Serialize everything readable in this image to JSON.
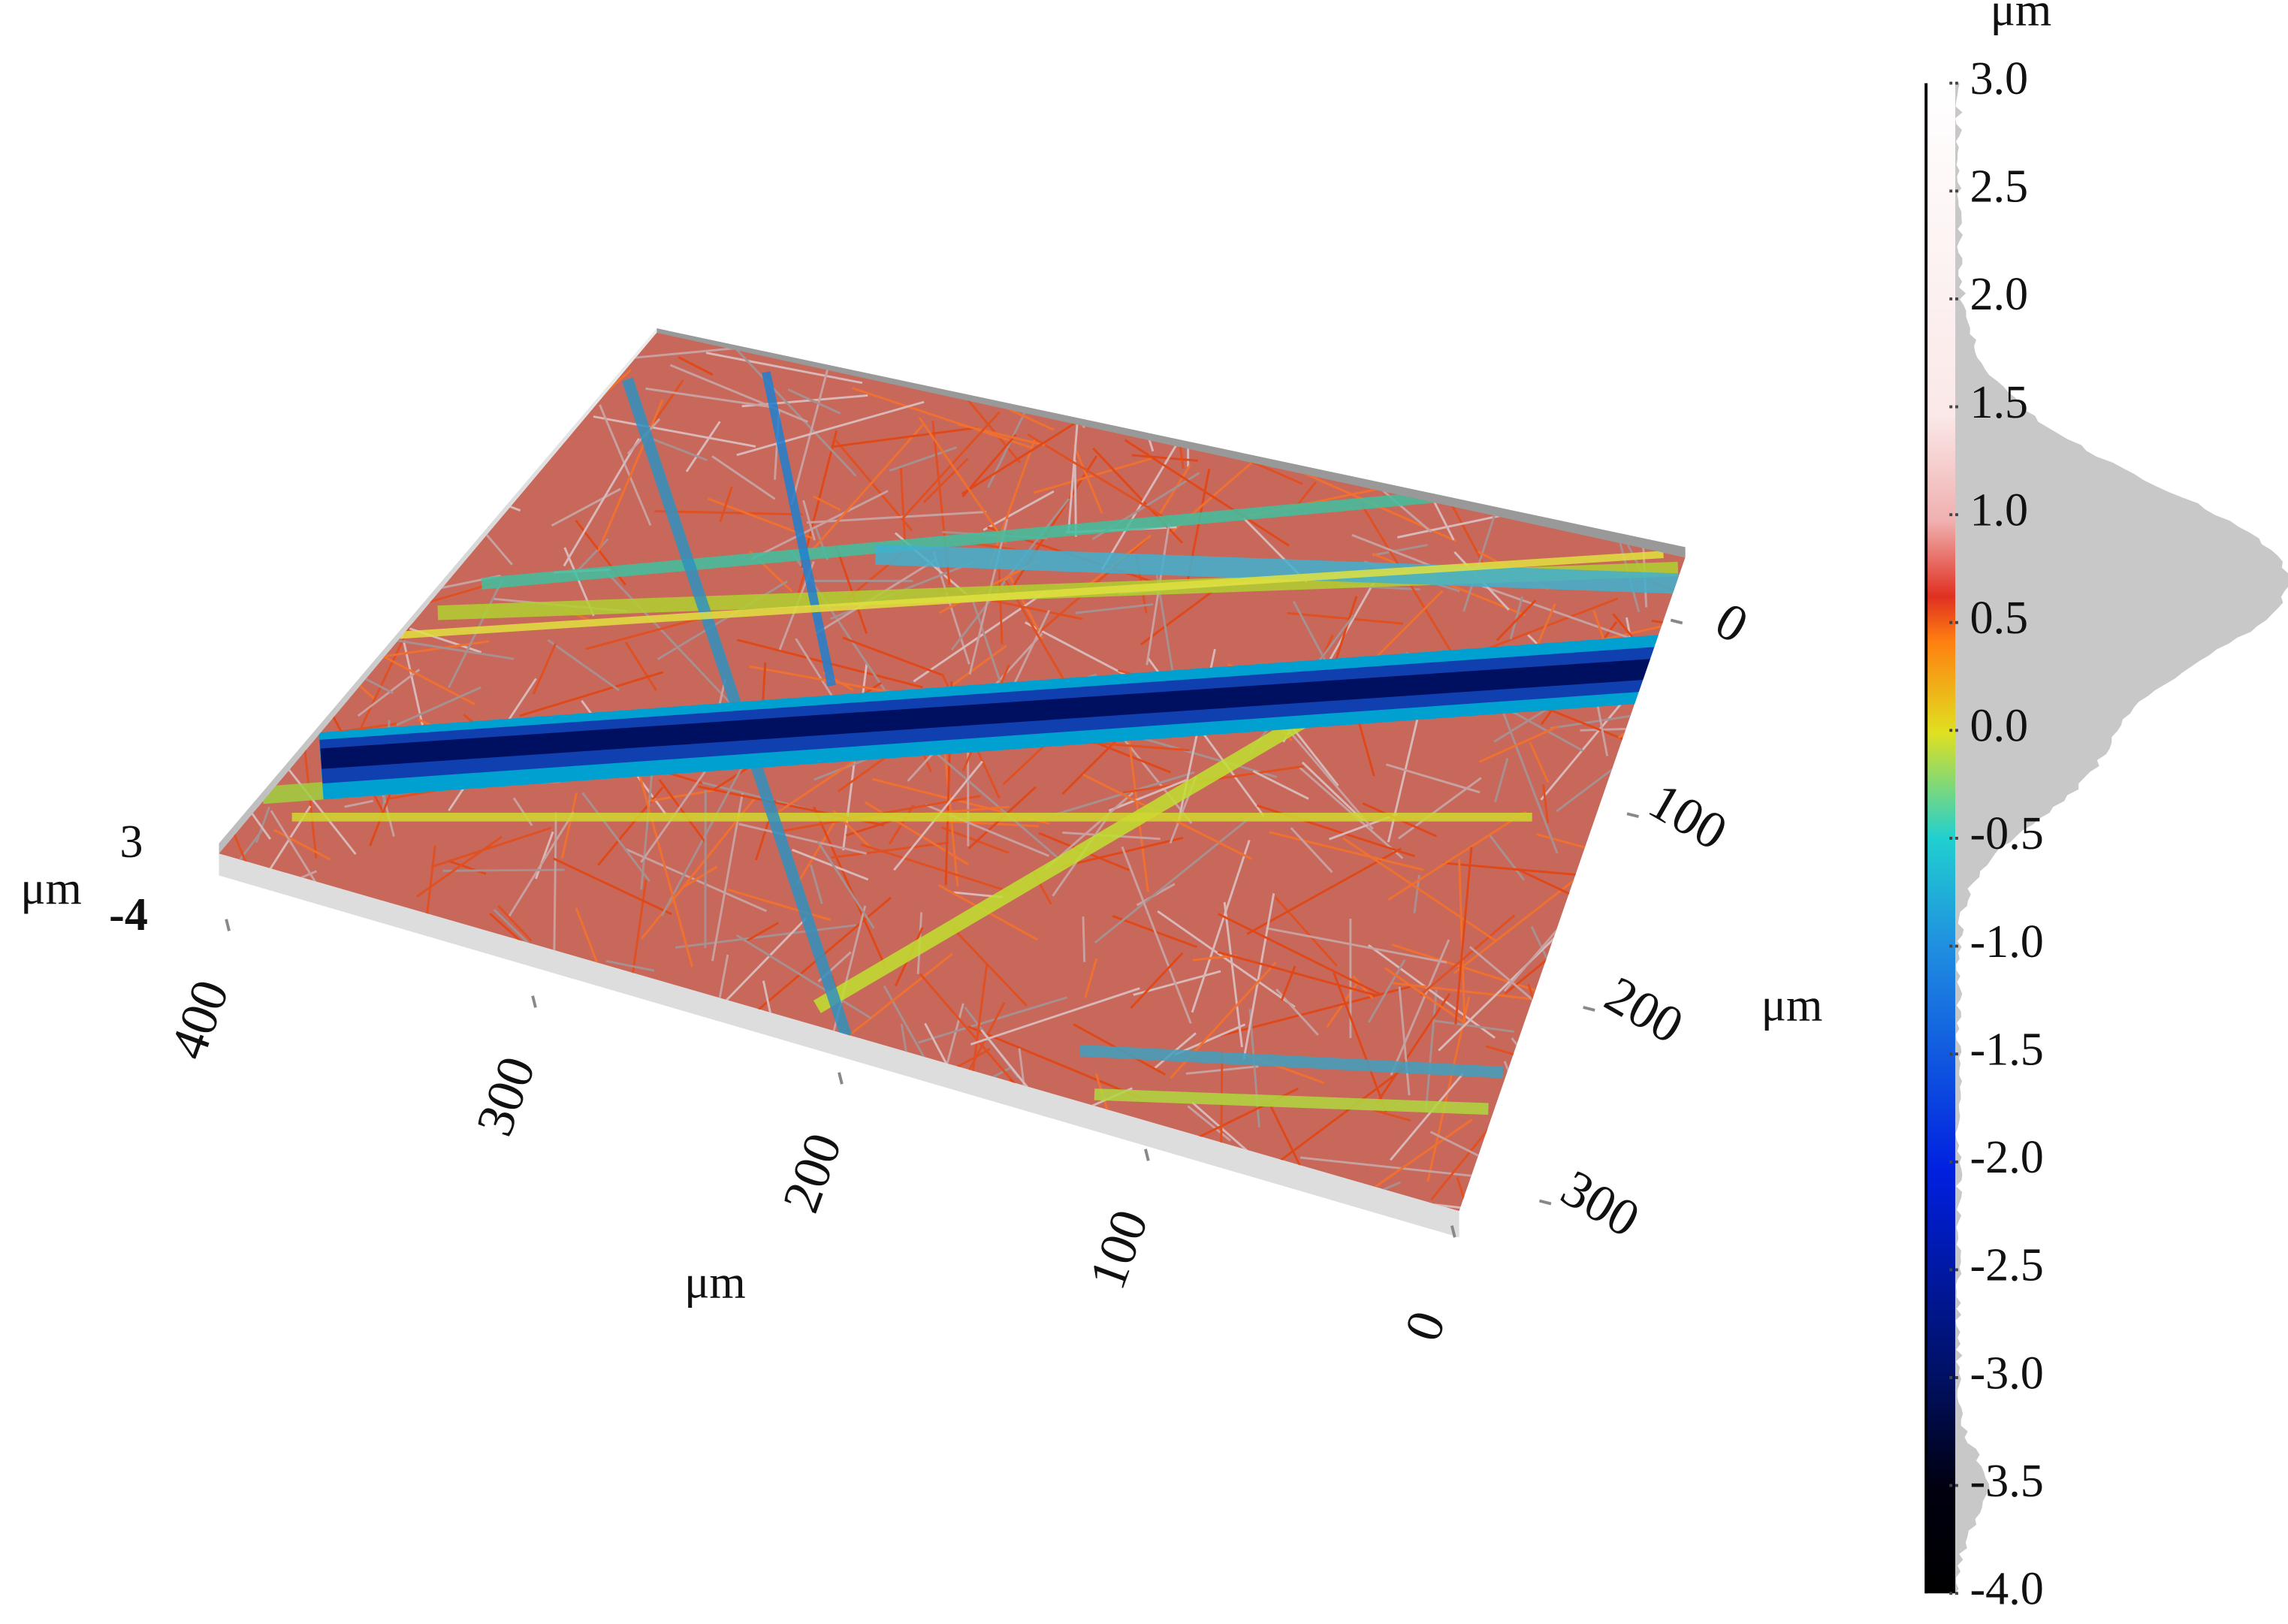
{
  "chart_data": {
    "type": "surface",
    "x_axis": {
      "label": "μm",
      "lim": [
        0,
        400
      ],
      "ticks": [
        0,
        100,
        200,
        300,
        400
      ]
    },
    "y_axis": {
      "label": "μm",
      "lim": [
        0,
        300
      ],
      "ticks": [
        0,
        100,
        200,
        300
      ]
    },
    "z_axis": {
      "label": "μm",
      "lim": [
        -4,
        3
      ]
    },
    "colorbar": {
      "label": "μm",
      "lim": [
        -4,
        3
      ],
      "ticks": [
        {
          "value": 3,
          "label": "3.0"
        },
        {
          "value": 2.5,
          "label": "2.5"
        },
        {
          "value": 2,
          "label": "2.0"
        },
        {
          "value": 1.5,
          "label": "1.5"
        },
        {
          "value": 1,
          "label": "1.0"
        },
        {
          "value": 0.5,
          "label": "0.5"
        },
        {
          "value": 0,
          "label": "0.0"
        },
        {
          "value": -0.5,
          "label": "-0.5"
        },
        {
          "value": -1,
          "label": "-1.0"
        },
        {
          "value": -1.5,
          "label": "-1.5"
        },
        {
          "value": -2,
          "label": "-2.0"
        },
        {
          "value": -2.5,
          "label": "-2.5"
        },
        {
          "value": -3,
          "label": "-3.0"
        },
        {
          "value": -3.5,
          "label": "-3.5"
        },
        {
          "value": -4,
          "label": "-4.0"
        }
      ]
    }
  }
}
